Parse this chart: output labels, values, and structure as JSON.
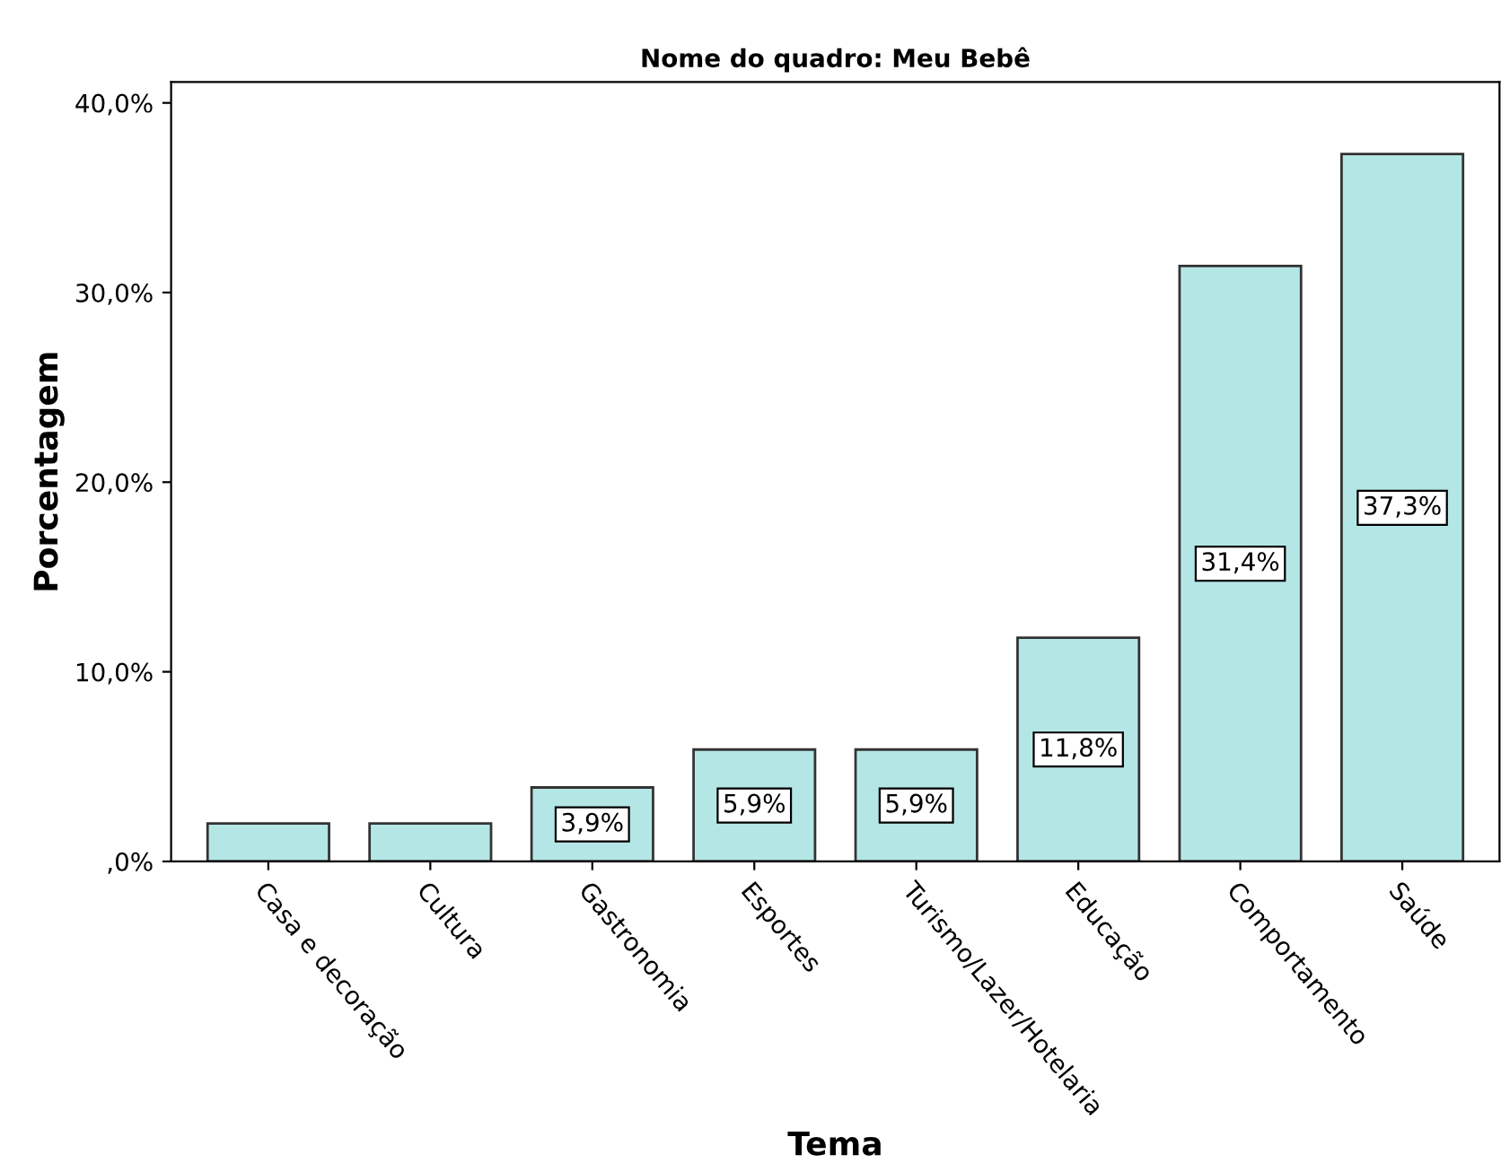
{
  "chart_data": {
    "type": "bar",
    "title": "Nome do quadro: Meu Bebê",
    "xlabel": "Tema",
    "ylabel": "Porcentagem",
    "categories": [
      "Casa e decoração",
      "Cultura",
      "Gastronomia",
      "Esportes",
      "Turismo/Lazer/Hotelaria",
      "Educação",
      "Comportamento",
      "Saúde"
    ],
    "values": [
      2.0,
      2.0,
      3.9,
      5.9,
      5.9,
      11.8,
      31.4,
      37.3
    ],
    "value_labels": [
      null,
      null,
      "3,9%",
      "5,9%",
      "5,9%",
      "11,8%",
      "31,4%",
      "37,3%"
    ],
    "color": "#b5e6e6",
    "ylim": [
      0,
      41.1
    ],
    "yticks": [
      {
        "value": 0,
        "label": ",0%"
      },
      {
        "value": 10,
        "label": "10,0%"
      },
      {
        "value": 20,
        "label": "20,0%"
      },
      {
        "value": 30,
        "label": "30,0%"
      },
      {
        "value": 40,
        "label": "40,0%"
      }
    ],
    "grid": false,
    "legend": false
  }
}
